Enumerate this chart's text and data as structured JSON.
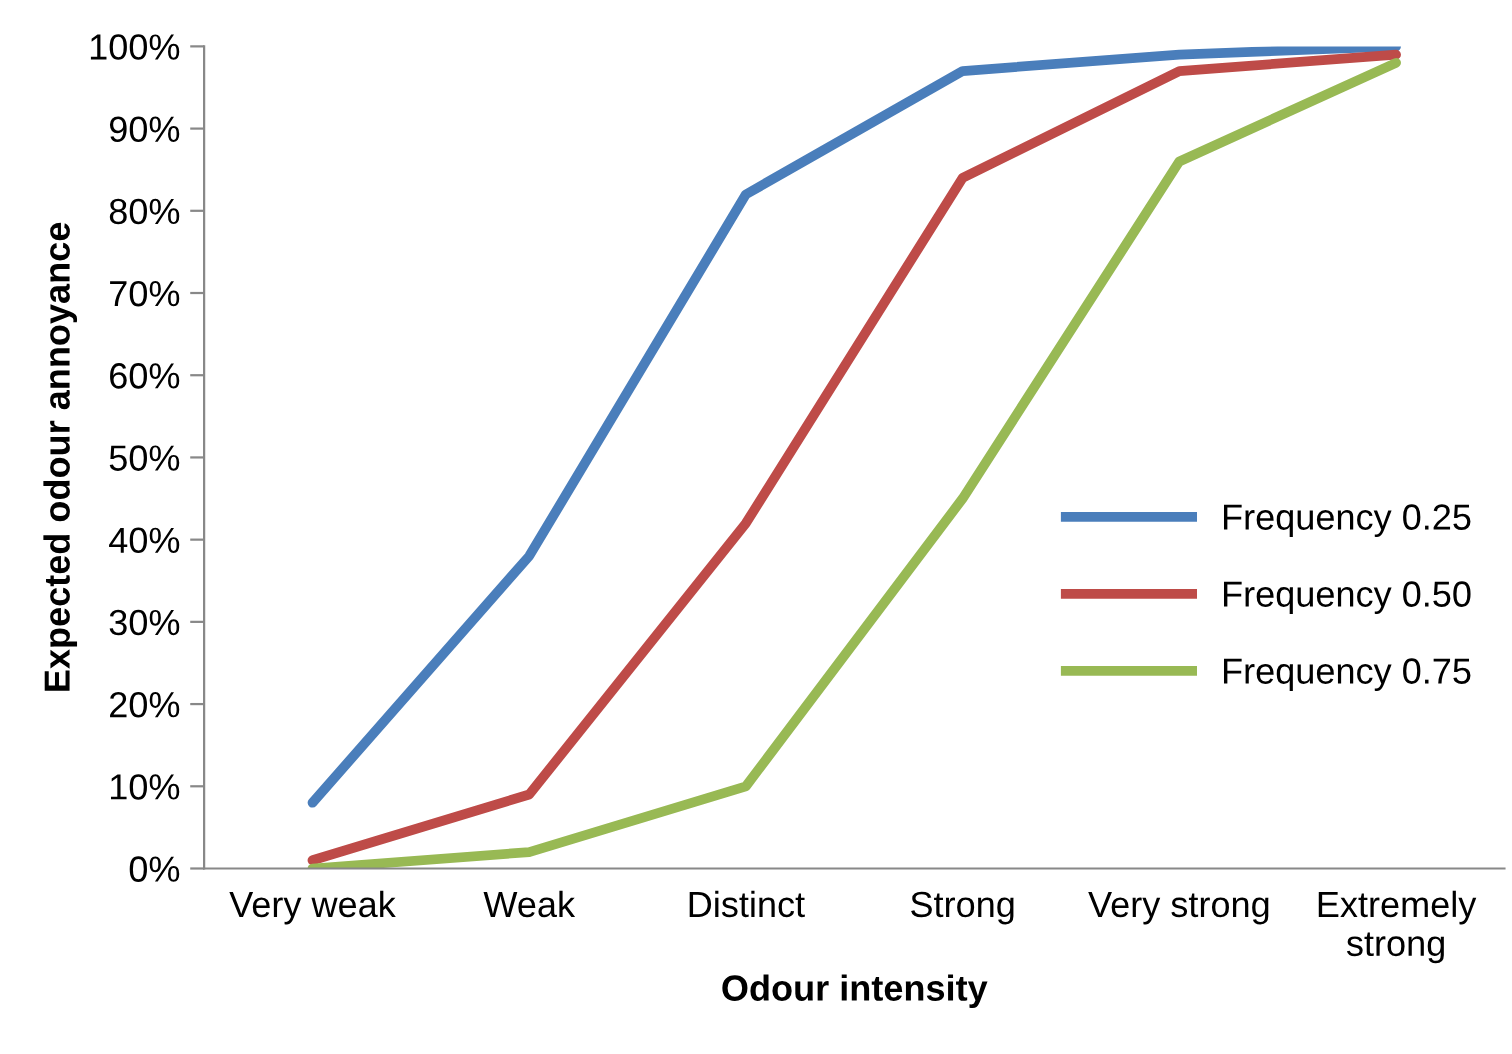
{
  "chart_data": {
    "type": "line",
    "xlabel": "Odour intensity",
    "ylabel": "Expected odour annoyance",
    "categories": [
      "Very weak",
      "Weak",
      "Distinct",
      "Strong",
      "Very strong",
      "Extremely strong"
    ],
    "series": [
      {
        "name": "Frequency 0.25",
        "color": "#4a7ebb",
        "values": [
          8,
          38,
          82,
          97,
          99,
          100
        ]
      },
      {
        "name": "Frequency 0.50",
        "color": "#be4b48",
        "values": [
          1,
          9,
          42,
          84,
          97,
          99
        ]
      },
      {
        "name": "Frequency 0.75",
        "color": "#98b954",
        "values": [
          0,
          2,
          10,
          45,
          86,
          98
        ]
      }
    ],
    "ylim": [
      0,
      100
    ],
    "yticks": [
      {
        "value": 0,
        "label": "0%"
      },
      {
        "value": 10,
        "label": "10%"
      },
      {
        "value": 20,
        "label": "20%"
      },
      {
        "value": 30,
        "label": "30%"
      },
      {
        "value": 40,
        "label": "40%"
      },
      {
        "value": 50,
        "label": "50%"
      },
      {
        "value": 60,
        "label": "60%"
      },
      {
        "value": 70,
        "label": "70%"
      },
      {
        "value": 80,
        "label": "80%"
      },
      {
        "value": 90,
        "label": "90%"
      },
      {
        "value": 100,
        "label": "100%"
      }
    ],
    "grid": false,
    "legend": "right",
    "marker": "none",
    "line_style": "solid"
  }
}
